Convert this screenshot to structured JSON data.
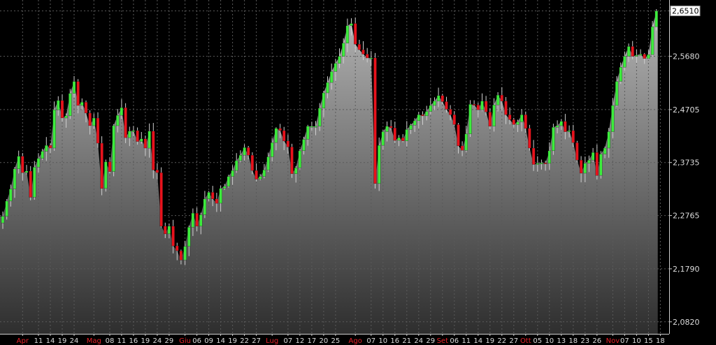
{
  "chart_data": {
    "type": "candlestick",
    "title": "",
    "xlabel": "",
    "ylabel": "",
    "ylim": [
      2.06,
      2.671
    ],
    "y_ticks": [
      "2,6510",
      "2,5680",
      "2,4705",
      "2,3735",
      "2,2765",
      "2,1790",
      "2,0820"
    ],
    "y_tick_values": [
      2.651,
      2.568,
      2.4705,
      2.3735,
      2.2765,
      2.179,
      2.082
    ],
    "last_value_label": "2,6510",
    "x_ticks": [
      {
        "label": "Apr",
        "month": true,
        "i": 5
      },
      {
        "label": "11",
        "month": false,
        "i": 9
      },
      {
        "label": "14",
        "month": false,
        "i": 12
      },
      {
        "label": "19",
        "month": false,
        "i": 15
      },
      {
        "label": "24",
        "month": false,
        "i": 18
      },
      {
        "label": "Mag",
        "month": true,
        "i": 23
      },
      {
        "label": "08",
        "month": false,
        "i": 27
      },
      {
        "label": "11",
        "month": false,
        "i": 30
      },
      {
        "label": "16",
        "month": false,
        "i": 33
      },
      {
        "label": "19",
        "month": false,
        "i": 36
      },
      {
        "label": "24",
        "month": false,
        "i": 39
      },
      {
        "label": "29",
        "month": false,
        "i": 42
      },
      {
        "label": "Giu",
        "month": true,
        "i": 46
      },
      {
        "label": "06",
        "month": false,
        "i": 49
      },
      {
        "label": "09",
        "month": false,
        "i": 52
      },
      {
        "label": "14",
        "month": false,
        "i": 55
      },
      {
        "label": "19",
        "month": false,
        "i": 58
      },
      {
        "label": "22",
        "month": false,
        "i": 61
      },
      {
        "label": "27",
        "month": false,
        "i": 64
      },
      {
        "label": "Lug",
        "month": true,
        "i": 68
      },
      {
        "label": "07",
        "month": false,
        "i": 72
      },
      {
        "label": "12",
        "month": false,
        "i": 75
      },
      {
        "label": "17",
        "month": false,
        "i": 78
      },
      {
        "label": "20",
        "month": false,
        "i": 81
      },
      {
        "label": "25",
        "month": false,
        "i": 84
      },
      {
        "label": "Ago",
        "month": true,
        "i": 89
      },
      {
        "label": "07",
        "month": false,
        "i": 93
      },
      {
        "label": "10",
        "month": false,
        "i": 96
      },
      {
        "label": "16",
        "month": false,
        "i": 99
      },
      {
        "label": "21",
        "month": false,
        "i": 102
      },
      {
        "label": "24",
        "month": false,
        "i": 105
      },
      {
        "label": "29",
        "month": false,
        "i": 108
      },
      {
        "label": "Set",
        "month": true,
        "i": 111
      },
      {
        "label": "06",
        "month": false,
        "i": 114
      },
      {
        "label": "11",
        "month": false,
        "i": 117
      },
      {
        "label": "14",
        "month": false,
        "i": 120
      },
      {
        "label": "19",
        "month": false,
        "i": 123
      },
      {
        "label": "22",
        "month": false,
        "i": 126
      },
      {
        "label": "27",
        "month": false,
        "i": 129
      },
      {
        "label": "Ott",
        "month": true,
        "i": 132
      },
      {
        "label": "05",
        "month": false,
        "i": 135
      },
      {
        "label": "10",
        "month": false,
        "i": 138
      },
      {
        "label": "13",
        "month": false,
        "i": 141
      },
      {
        "label": "18",
        "month": false,
        "i": 144
      },
      {
        "label": "23",
        "month": false,
        "i": 147
      },
      {
        "label": "26",
        "month": false,
        "i": 150
      },
      {
        "label": "Nov",
        "month": true,
        "i": 154
      },
      {
        "label": "07",
        "month": false,
        "i": 157
      },
      {
        "label": "10",
        "month": false,
        "i": 160
      },
      {
        "label": "15",
        "month": false,
        "i": 163
      },
      {
        "label": "18",
        "month": false,
        "i": 166
      }
    ],
    "closes": [
      2.275,
      2.303,
      2.325,
      2.362,
      2.385,
      2.355,
      2.358,
      2.31,
      2.365,
      2.381,
      2.394,
      2.405,
      2.4,
      2.47,
      2.487,
      2.455,
      2.459,
      2.5,
      2.522,
      2.478,
      2.484,
      2.464,
      2.441,
      2.455,
      2.409,
      2.326,
      2.375,
      2.357,
      2.441,
      2.46,
      2.474,
      2.419,
      2.431,
      2.432,
      2.412,
      2.417,
      2.4,
      2.431,
      2.36,
      2.355,
      2.257,
      2.243,
      2.257,
      2.221,
      2.212,
      2.195,
      2.22,
      2.255,
      2.281,
      2.257,
      2.278,
      2.307,
      2.319,
      2.307,
      2.299,
      2.326,
      2.33,
      2.348,
      2.359,
      2.377,
      2.387,
      2.401,
      2.387,
      2.359,
      2.343,
      2.348,
      2.36,
      2.384,
      2.41,
      2.436,
      2.432,
      2.413,
      2.402,
      2.353,
      2.364,
      2.395,
      2.416,
      2.44,
      2.44,
      2.44,
      2.473,
      2.501,
      2.52,
      2.54,
      2.555,
      2.568,
      2.592,
      2.624,
      2.628,
      2.59,
      2.58,
      2.572,
      2.565,
      2.565,
      2.335,
      2.405,
      2.43,
      2.44,
      2.437,
      2.414,
      2.419,
      2.413,
      2.434,
      2.442,
      2.45,
      2.461,
      2.459,
      2.467,
      2.478,
      2.486,
      2.496,
      2.485,
      2.471,
      2.461,
      2.443,
      2.404,
      2.396,
      2.426,
      2.48,
      2.479,
      2.47,
      2.486,
      2.466,
      2.44,
      2.479,
      2.497,
      2.486,
      2.461,
      2.452,
      2.443,
      2.448,
      2.461,
      2.436,
      2.4,
      2.37,
      2.372,
      2.373,
      2.372,
      2.395,
      2.438,
      2.441,
      2.449,
      2.43,
      2.432,
      2.41,
      2.378,
      2.354,
      2.372,
      2.378,
      2.392,
      2.35,
      2.389,
      2.4,
      2.43,
      2.478,
      2.522,
      2.548,
      2.568,
      2.586,
      2.568,
      2.57,
      2.572,
      2.564,
      2.571,
      2.622,
      2.651
    ],
    "colors": {
      "background": "#000000",
      "up": "#3dec3d",
      "down": "#e8121c",
      "wick": "#d0d0d0",
      "grid": "#5a5a5a",
      "axis": "#cfcfcf",
      "month_label": "#e8222a",
      "label": "#dcdcdc"
    }
  }
}
